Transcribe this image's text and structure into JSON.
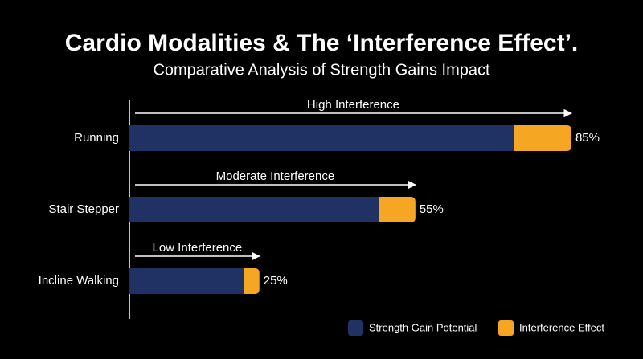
{
  "chart_data": {
    "type": "stacked-bar-horizontal",
    "title": "Cardio Modalities & The ‘Interference Effect’.",
    "subtitle": "Comparative Analysis of Strength Gains Impact",
    "categories": [
      "Running",
      "Stair Stepper",
      "Incline Walking"
    ],
    "series": [
      {
        "name": "Strength Gain Potential",
        "color": "#1f3263",
        "values": [
          74,
          48,
          22
        ]
      },
      {
        "name": "Interference Effect",
        "color": "#f5a623",
        "values": [
          11,
          7,
          3
        ]
      }
    ],
    "totals": {
      "values": [
        85,
        55,
        25
      ],
      "value_labels": [
        "85%",
        "55%",
        "25%"
      ]
    },
    "annotations": [
      "High Interference",
      "Moderate Interference",
      "Low Interference"
    ],
    "xlim": [
      0,
      100
    ],
    "legend": "bottom-right"
  }
}
